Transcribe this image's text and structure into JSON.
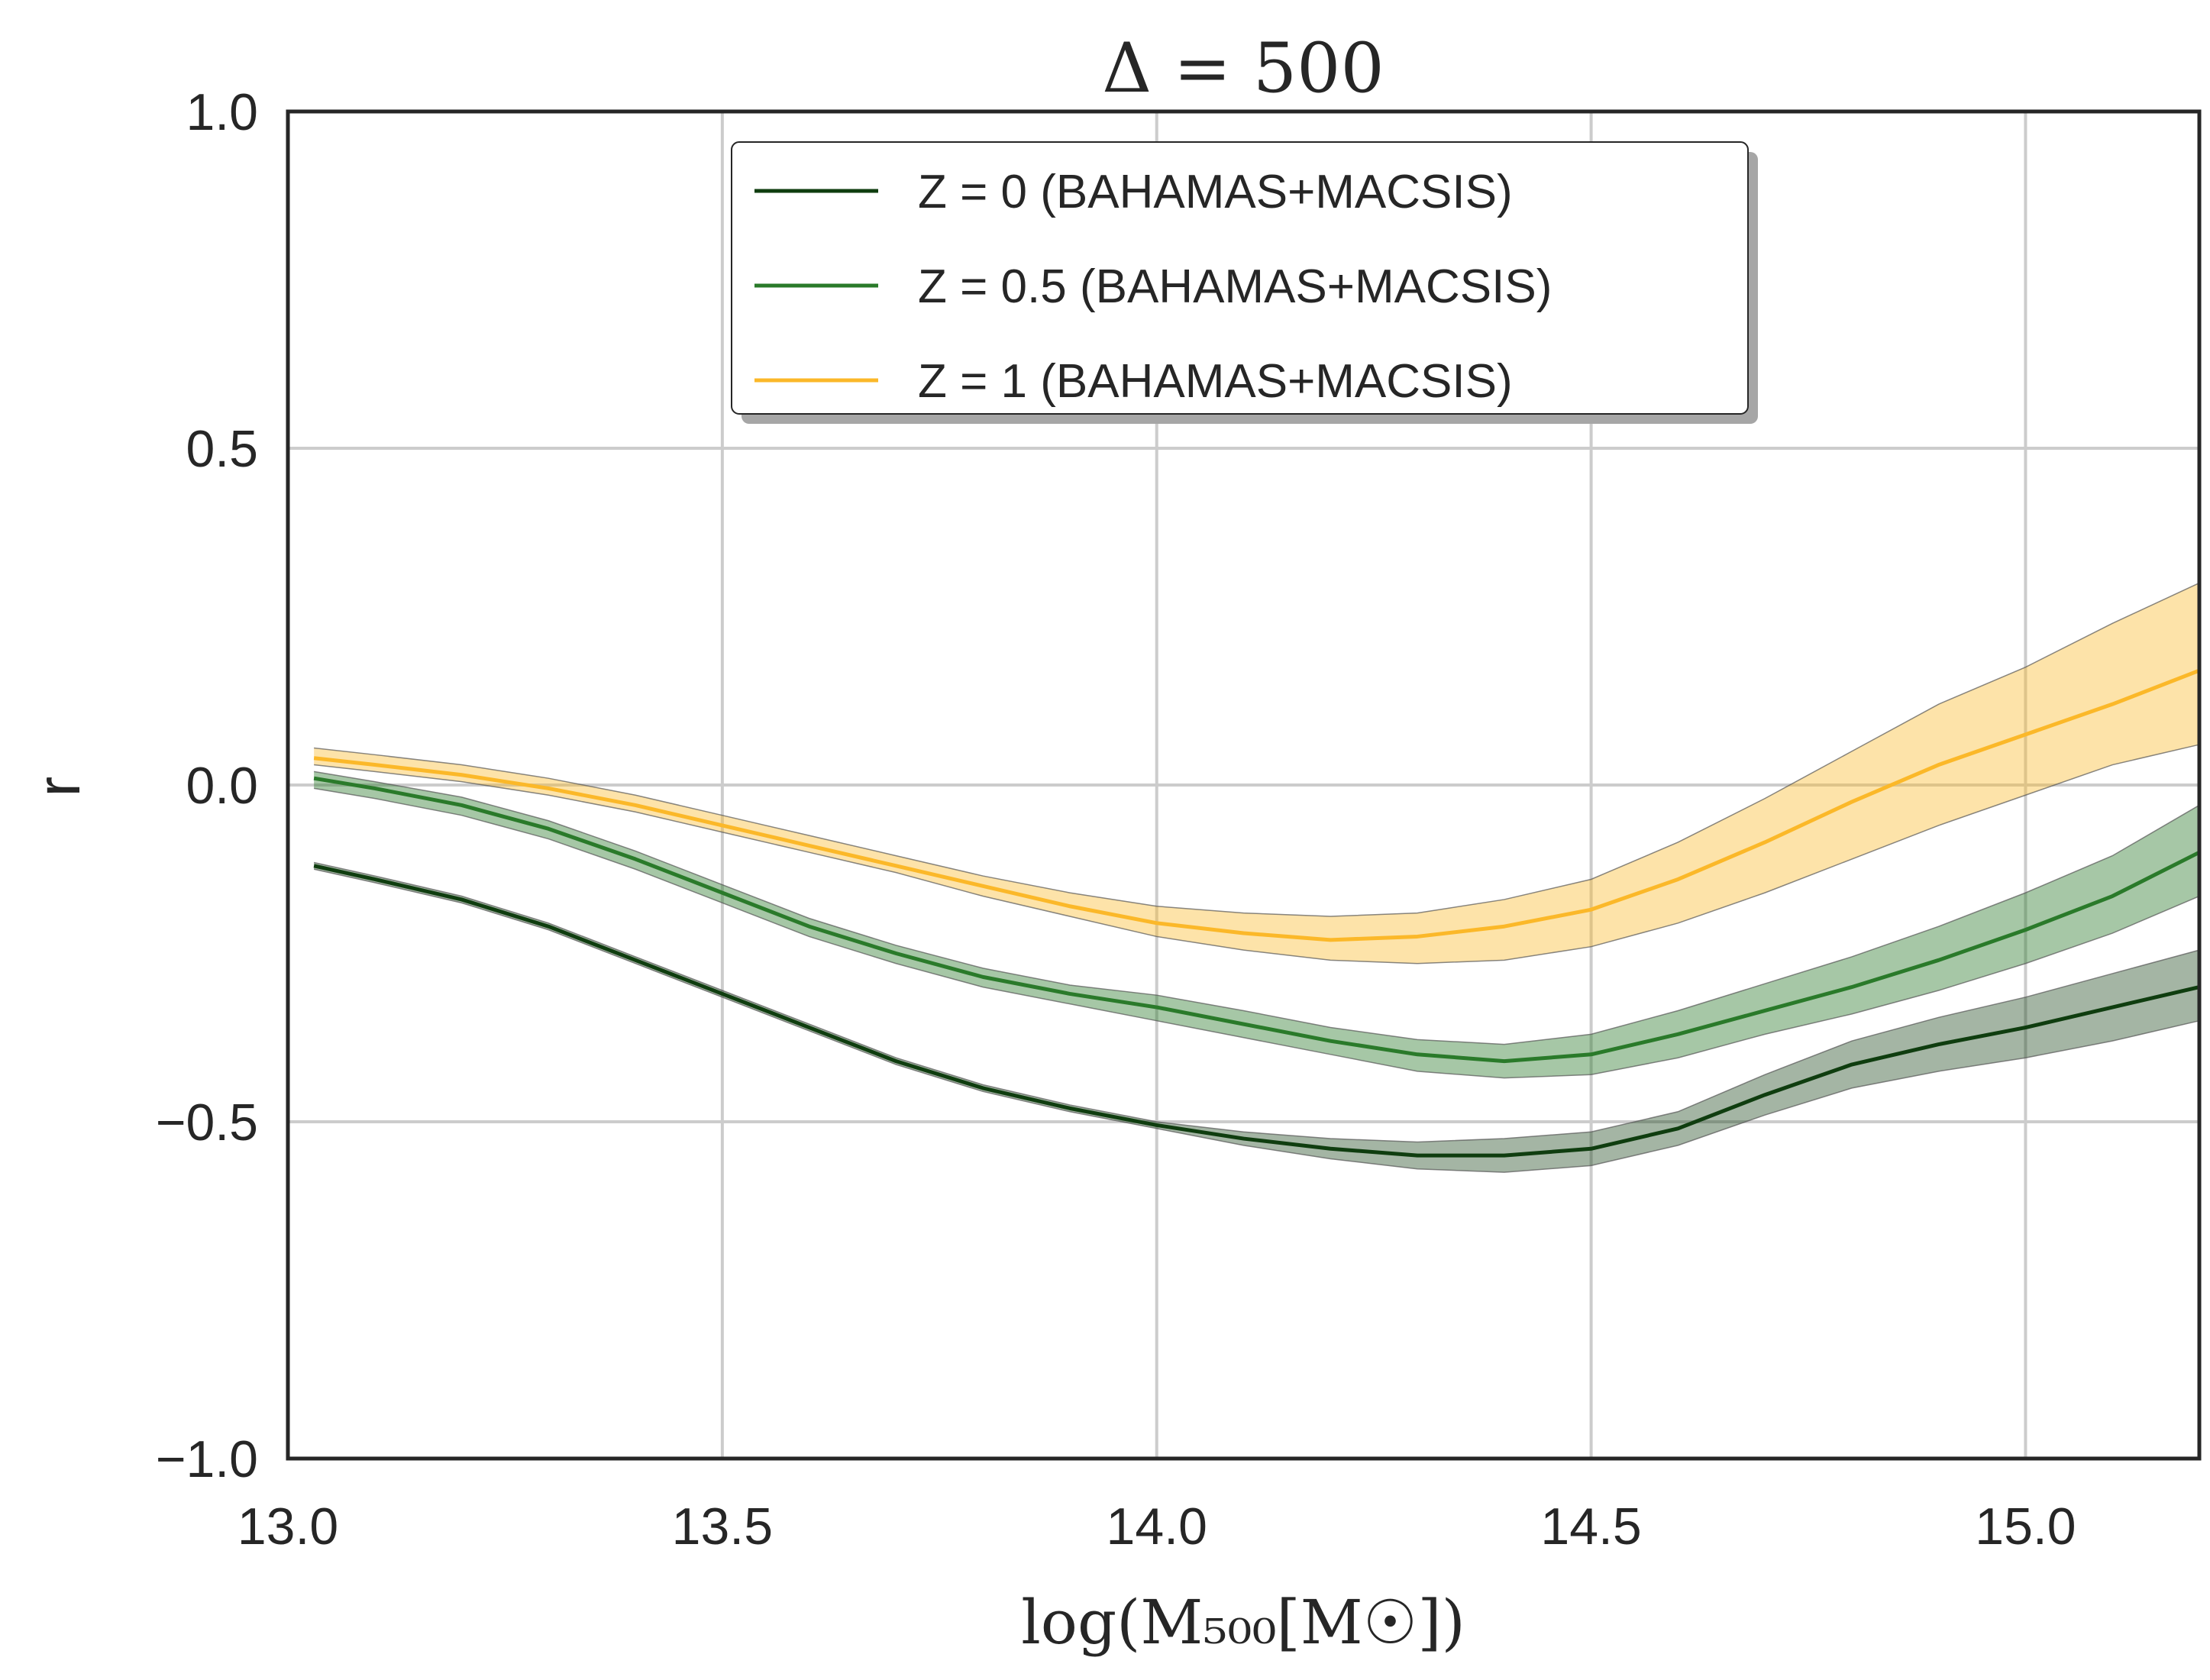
{
  "chart_data": {
    "type": "line",
    "title": "Δ = 500",
    "xlabel": "log(M₅₀₀[M☉])",
    "ylabel": "r",
    "xlim": [
      13.0,
      15.2
    ],
    "ylim": [
      -1.0,
      1.0
    ],
    "xticks": [
      13.0,
      13.5,
      14.0,
      14.5,
      15.0
    ],
    "xtick_labels": [
      "13.0",
      "13.5",
      "14.0",
      "14.5",
      "15.0"
    ],
    "yticks": [
      1.0,
      0.5,
      0.0,
      -0.5,
      -1.0
    ],
    "ytick_labels": [
      "1.0",
      "0.5",
      "0.0",
      "−0.5",
      "−1.0"
    ],
    "grid": true,
    "legend_position": "upper-center",
    "x": [
      13.03,
      13.1,
      13.2,
      13.3,
      13.4,
      13.5,
      13.6,
      13.7,
      13.8,
      13.9,
      14.0,
      14.1,
      14.2,
      14.3,
      14.4,
      14.5,
      14.6,
      14.7,
      14.8,
      14.9,
      15.0,
      15.1,
      15.2
    ],
    "series": [
      {
        "name": "Z = 0 (BAHAMAS+MACSIS)",
        "color": "#0f3d0f",
        "values": [
          -0.12,
          -0.14,
          -0.17,
          -0.21,
          -0.26,
          -0.31,
          -0.36,
          -0.41,
          -0.45,
          -0.48,
          -0.505,
          -0.525,
          -0.54,
          -0.55,
          -0.55,
          -0.54,
          -0.51,
          -0.46,
          -0.415,
          -0.385,
          -0.36,
          -0.33,
          -0.3
        ],
        "band_lower": [
          -0.125,
          -0.145,
          -0.175,
          -0.215,
          -0.265,
          -0.315,
          -0.365,
          -0.415,
          -0.455,
          -0.485,
          -0.51,
          -0.535,
          -0.555,
          -0.57,
          -0.575,
          -0.565,
          -0.535,
          -0.49,
          -0.45,
          -0.425,
          -0.405,
          -0.38,
          -0.35
        ],
        "band_upper": [
          -0.115,
          -0.135,
          -0.165,
          -0.205,
          -0.255,
          -0.305,
          -0.355,
          -0.405,
          -0.445,
          -0.475,
          -0.5,
          -0.515,
          -0.525,
          -0.53,
          -0.525,
          -0.515,
          -0.485,
          -0.43,
          -0.38,
          -0.345,
          -0.315,
          -0.28,
          -0.245
        ]
      },
      {
        "name": "Z = 0.5 (BAHAMAS+MACSIS)",
        "color": "#2a7a2a",
        "values": [
          0.01,
          -0.005,
          -0.03,
          -0.065,
          -0.11,
          -0.16,
          -0.21,
          -0.25,
          -0.285,
          -0.31,
          -0.33,
          -0.355,
          -0.38,
          -0.4,
          -0.41,
          -0.4,
          -0.37,
          -0.335,
          -0.3,
          -0.26,
          -0.215,
          -0.165,
          -0.1
        ],
        "band_lower": [
          -0.005,
          -0.02,
          -0.045,
          -0.08,
          -0.125,
          -0.175,
          -0.225,
          -0.265,
          -0.3,
          -0.325,
          -0.35,
          -0.375,
          -0.4,
          -0.425,
          -0.435,
          -0.43,
          -0.405,
          -0.37,
          -0.34,
          -0.305,
          -0.265,
          -0.22,
          -0.165
        ],
        "band_upper": [
          0.02,
          0.005,
          -0.018,
          -0.053,
          -0.098,
          -0.148,
          -0.198,
          -0.238,
          -0.272,
          -0.297,
          -0.312,
          -0.335,
          -0.36,
          -0.378,
          -0.385,
          -0.37,
          -0.335,
          -0.295,
          -0.255,
          -0.21,
          -0.16,
          -0.105,
          -0.03
        ]
      },
      {
        "name": "Z = 1 (BAHAMAS+MACSIS)",
        "color": "#fbb829",
        "values": [
          0.04,
          0.03,
          0.015,
          -0.005,
          -0.03,
          -0.06,
          -0.09,
          -0.12,
          -0.15,
          -0.18,
          -0.205,
          -0.22,
          -0.23,
          -0.225,
          -0.21,
          -0.185,
          -0.14,
          -0.085,
          -0.025,
          0.03,
          0.075,
          0.12,
          0.17
        ],
        "band_lower": [
          0.03,
          0.02,
          0.005,
          -0.015,
          -0.04,
          -0.07,
          -0.1,
          -0.13,
          -0.165,
          -0.195,
          -0.225,
          -0.245,
          -0.26,
          -0.265,
          -0.26,
          -0.24,
          -0.205,
          -0.16,
          -0.11,
          -0.06,
          -0.015,
          0.03,
          0.06
        ],
        "band_upper": [
          0.055,
          0.045,
          0.03,
          0.01,
          -0.015,
          -0.045,
          -0.075,
          -0.105,
          -0.135,
          -0.16,
          -0.18,
          -0.19,
          -0.195,
          -0.19,
          -0.17,
          -0.14,
          -0.085,
          -0.02,
          0.05,
          0.12,
          0.175,
          0.24,
          0.3
        ]
      }
    ]
  }
}
